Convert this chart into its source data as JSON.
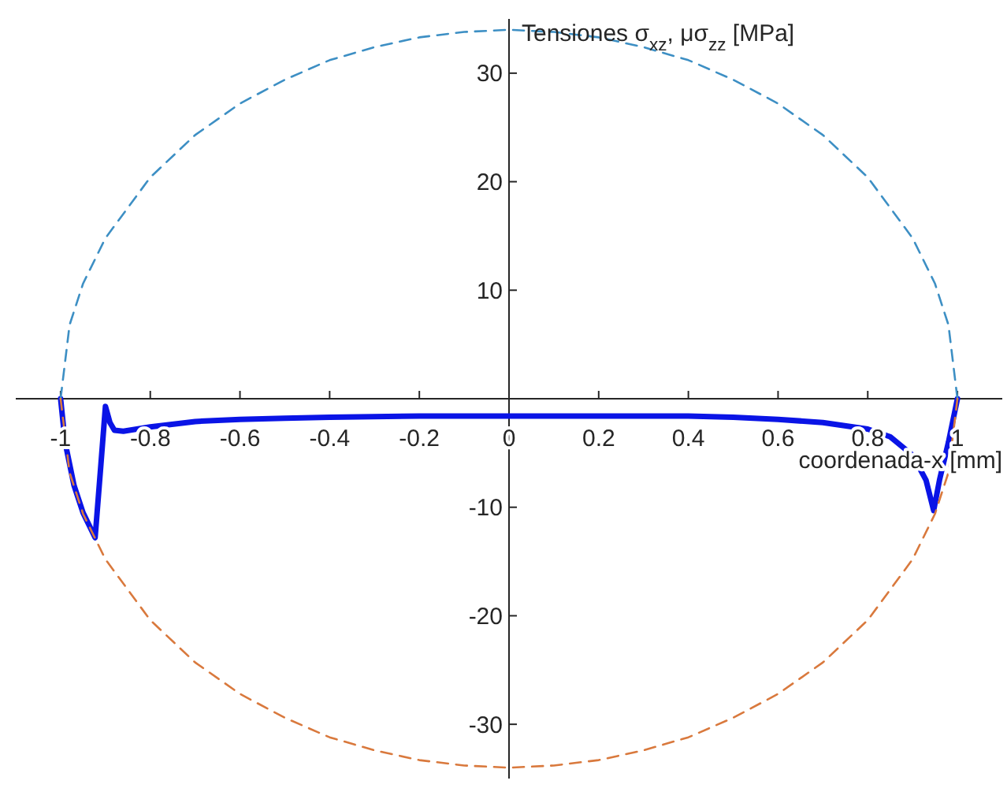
{
  "chart_data": {
    "type": "line",
    "xlabel": "coordenada-x [mm]",
    "ylabel": "Tensiones σ$_{xz}$, μσ$_{zz}$ [MPa]",
    "xlim": [
      -1.1,
      1.1
    ],
    "ylim": [
      -35,
      35
    ],
    "xticks": [
      -1,
      -0.8,
      -0.6,
      -0.4,
      -0.2,
      0,
      0.2,
      0.4,
      0.6,
      0.8,
      1
    ],
    "yticks": [
      -30,
      -20,
      -10,
      10,
      20,
      30
    ],
    "series": [
      {
        "color": "#3d8fc4",
        "line_style": "dashed",
        "x": [
          -1,
          -0.98,
          -0.95,
          -0.9,
          -0.8,
          -0.7,
          -0.6,
          -0.5,
          -0.4,
          -0.3,
          -0.2,
          -0.1,
          0,
          0.1,
          0.2,
          0.3,
          0.4,
          0.5,
          0.6,
          0.7,
          0.8,
          0.9,
          0.95,
          0.98,
          1
        ],
        "values": [
          0,
          6.8,
          10.6,
          14.8,
          20.4,
          24.3,
          27.2,
          29.4,
          31.2,
          32.4,
          33.3,
          33.8,
          34,
          33.8,
          33.3,
          32.4,
          31.2,
          29.4,
          27.2,
          24.3,
          20.4,
          14.8,
          10.6,
          6.8,
          0
        ]
      },
      {
        "color": "#d9793d",
        "line_style": "dashed",
        "x": [
          -1,
          -0.98,
          -0.95,
          -0.9,
          -0.8,
          -0.7,
          -0.6,
          -0.5,
          -0.4,
          -0.3,
          -0.2,
          -0.1,
          0,
          0.1,
          0.2,
          0.3,
          0.4,
          0.5,
          0.6,
          0.7,
          0.8,
          0.9,
          0.95,
          0.98,
          1
        ],
        "values": [
          0,
          -6.8,
          -10.6,
          -14.8,
          -20.4,
          -24.3,
          -27.2,
          -29.4,
          -31.2,
          -32.4,
          -33.3,
          -33.8,
          -34,
          -33.8,
          -33.3,
          -32.4,
          -31.2,
          -29.4,
          -27.2,
          -24.3,
          -20.4,
          -14.8,
          -10.6,
          -6.8,
          0
        ]
      },
      {
        "color": "#0a14e6",
        "line_style": "solid",
        "x": [
          -1,
          -0.99,
          -0.97,
          -0.95,
          -0.923,
          -0.91,
          -0.9,
          -0.89,
          -0.88,
          -0.86,
          -0.8,
          -0.7,
          -0.6,
          -0.5,
          -0.4,
          -0.2,
          0,
          0.2,
          0.4,
          0.5,
          0.6,
          0.7,
          0.8,
          0.85,
          0.9,
          0.93,
          0.947,
          0.96,
          0.98,
          1
        ],
        "values": [
          0,
          -4,
          -8,
          -10.5,
          -12.8,
          -6,
          -0.7,
          -2.2,
          -2.9,
          -3,
          -2.6,
          -2.1,
          -1.9,
          -1.8,
          -1.7,
          -1.6,
          -1.6,
          -1.6,
          -1.6,
          -1.7,
          -1.9,
          -2.2,
          -2.8,
          -3.5,
          -5.2,
          -7.5,
          -10.3,
          -7.5,
          -4,
          0
        ]
      }
    ]
  }
}
